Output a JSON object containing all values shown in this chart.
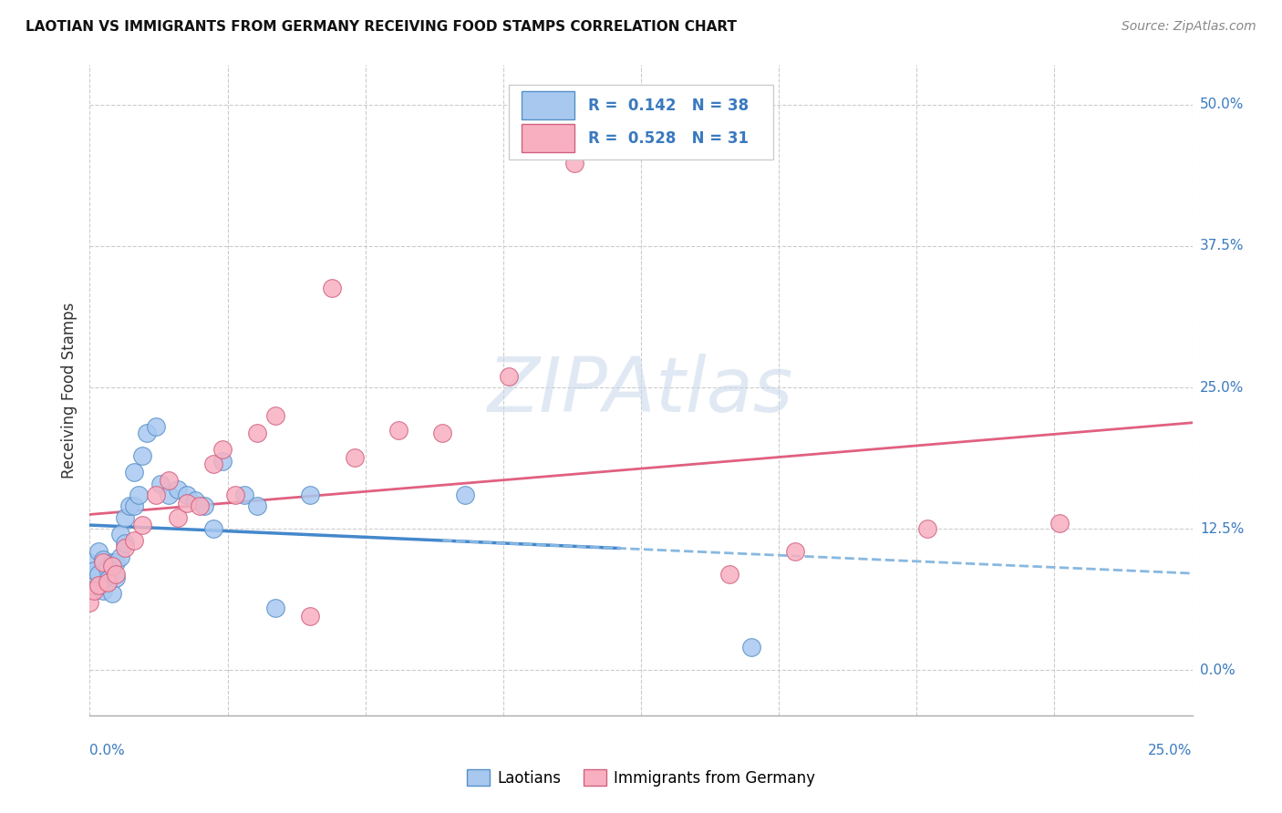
{
  "title": "LAOTIAN VS IMMIGRANTS FROM GERMANY RECEIVING FOOD STAMPS CORRELATION CHART",
  "source": "Source: ZipAtlas.com",
  "ylabel": "Receiving Food Stamps",
  "xmin": 0.0,
  "xmax": 0.25,
  "ymin": -0.04,
  "ymax": 0.535,
  "ytick_values": [
    0.0,
    0.125,
    0.25,
    0.375,
    0.5
  ],
  "ytick_labels": [
    "0.0%",
    "12.5%",
    "25.0%",
    "37.5%",
    "50.0%"
  ],
  "laotian_R": "0.142",
  "laotian_N": "38",
  "germany_R": "0.528",
  "germany_N": "31",
  "laotian_color": "#a8c8f0",
  "laotian_edge": "#5590c8",
  "germany_color": "#f8b0c0",
  "germany_edge": "#d06080",
  "laotian_solid_color": "#4488cc",
  "laotian_dash_color": "#88b8e0",
  "germany_line_color": "#e06080",
  "axis_color": "#3a7abf",
  "grid_color": "#cccccc",
  "watermark_color": "#c8d8ea",
  "legend_color": "#3a7abf",
  "laotian_x": [
    0.0,
    0.001,
    0.001,
    0.002,
    0.002,
    0.003,
    0.003,
    0.004,
    0.004,
    0.005,
    0.005,
    0.006,
    0.006,
    0.007,
    0.007,
    0.008,
    0.008,
    0.009,
    0.01,
    0.01,
    0.011,
    0.012,
    0.013,
    0.015,
    0.016,
    0.018,
    0.02,
    0.022,
    0.024,
    0.026,
    0.028,
    0.03,
    0.035,
    0.038,
    0.042,
    0.05,
    0.085,
    0.15
  ],
  "laotian_y": [
    0.095,
    0.088,
    0.072,
    0.105,
    0.085,
    0.098,
    0.07,
    0.09,
    0.08,
    0.095,
    0.068,
    0.095,
    0.082,
    0.12,
    0.1,
    0.135,
    0.112,
    0.145,
    0.175,
    0.145,
    0.155,
    0.19,
    0.21,
    0.215,
    0.165,
    0.155,
    0.16,
    0.155,
    0.15,
    0.145,
    0.125,
    0.185,
    0.155,
    0.145,
    0.055,
    0.155,
    0.155,
    0.02
  ],
  "germany_x": [
    0.0,
    0.001,
    0.002,
    0.003,
    0.004,
    0.005,
    0.006,
    0.008,
    0.01,
    0.012,
    0.015,
    0.018,
    0.02,
    0.022,
    0.025,
    0.028,
    0.03,
    0.033,
    0.038,
    0.042,
    0.05,
    0.055,
    0.06,
    0.07,
    0.08,
    0.095,
    0.11,
    0.145,
    0.16,
    0.19,
    0.22
  ],
  "germany_y": [
    0.06,
    0.07,
    0.075,
    0.095,
    0.078,
    0.092,
    0.085,
    0.108,
    0.115,
    0.128,
    0.155,
    0.168,
    0.135,
    0.148,
    0.145,
    0.182,
    0.195,
    0.155,
    0.21,
    0.225,
    0.048,
    0.338,
    0.188,
    0.212,
    0.21,
    0.26,
    0.448,
    0.085,
    0.105,
    0.125,
    0.13
  ]
}
